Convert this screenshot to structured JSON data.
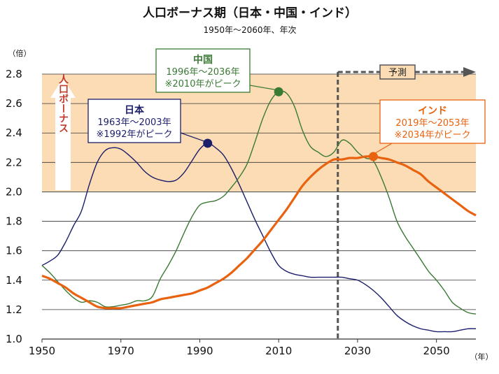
{
  "chart_data": {
    "type": "line",
    "title": "人口ボーナス期（日本・中国・インド）",
    "subtitle": "1950年～2060年、年次",
    "ylabel_unit": "（倍）",
    "xlabel_unit": "（年）",
    "xlim": [
      1950,
      2060
    ],
    "ylim": [
      1.0,
      2.8
    ],
    "x_ticks": [
      1950,
      1970,
      1990,
      2010,
      2030,
      2050
    ],
    "y_ticks": [
      "1.0",
      "1.2",
      "1.4",
      "1.6",
      "1.8",
      "2.0",
      "2.2",
      "2.4",
      "2.6",
      "2.8"
    ],
    "bonus_threshold": 2.0,
    "bonus_label": "人口ボーナス",
    "forecast_start": 2025,
    "forecast_label": "予測",
    "colors": {
      "japan": "#1b1e6b",
      "china": "#3a7a35",
      "india": "#e8620f",
      "bonus_band": "#fcdcb4",
      "bonus_text": "#c0392b",
      "forecast": "#555555"
    },
    "series": [
      {
        "name": "日本",
        "color": "#1b1e6b",
        "points": [
          [
            1950,
            1.5
          ],
          [
            1952,
            1.53
          ],
          [
            1954,
            1.57
          ],
          [
            1956,
            1.66
          ],
          [
            1958,
            1.77
          ],
          [
            1960,
            1.87
          ],
          [
            1962,
            2.05
          ],
          [
            1964,
            2.2
          ],
          [
            1966,
            2.28
          ],
          [
            1968,
            2.3
          ],
          [
            1970,
            2.29
          ],
          [
            1972,
            2.25
          ],
          [
            1974,
            2.2
          ],
          [
            1976,
            2.14
          ],
          [
            1978,
            2.1
          ],
          [
            1980,
            2.08
          ],
          [
            1982,
            2.07
          ],
          [
            1984,
            2.08
          ],
          [
            1986,
            2.13
          ],
          [
            1988,
            2.21
          ],
          [
            1990,
            2.29
          ],
          [
            1992,
            2.33
          ],
          [
            1994,
            2.3
          ],
          [
            1996,
            2.25
          ],
          [
            1998,
            2.16
          ],
          [
            2000,
            2.05
          ],
          [
            2002,
            1.93
          ],
          [
            2004,
            1.81
          ],
          [
            2006,
            1.7
          ],
          [
            2008,
            1.59
          ],
          [
            2010,
            1.5
          ],
          [
            2012,
            1.46
          ],
          [
            2014,
            1.44
          ],
          [
            2016,
            1.43
          ],
          [
            2018,
            1.42
          ],
          [
            2020,
            1.42
          ],
          [
            2022,
            1.42
          ],
          [
            2024,
            1.42
          ],
          [
            2026,
            1.42
          ],
          [
            2028,
            1.41
          ],
          [
            2030,
            1.4
          ],
          [
            2032,
            1.37
          ],
          [
            2034,
            1.33
          ],
          [
            2036,
            1.28
          ],
          [
            2038,
            1.22
          ],
          [
            2040,
            1.16
          ],
          [
            2042,
            1.12
          ],
          [
            2044,
            1.09
          ],
          [
            2046,
            1.07
          ],
          [
            2048,
            1.06
          ],
          [
            2050,
            1.05
          ],
          [
            2052,
            1.05
          ],
          [
            2054,
            1.05
          ],
          [
            2056,
            1.06
          ],
          [
            2058,
            1.07
          ],
          [
            2060,
            1.07
          ]
        ]
      },
      {
        "name": "中国",
        "color": "#3a7a35",
        "points": [
          [
            1950,
            1.5
          ],
          [
            1952,
            1.45
          ],
          [
            1954,
            1.39
          ],
          [
            1956,
            1.33
          ],
          [
            1958,
            1.28
          ],
          [
            1960,
            1.25
          ],
          [
            1962,
            1.26
          ],
          [
            1964,
            1.25
          ],
          [
            1966,
            1.22
          ],
          [
            1968,
            1.22
          ],
          [
            1970,
            1.23
          ],
          [
            1972,
            1.24
          ],
          [
            1974,
            1.26
          ],
          [
            1976,
            1.26
          ],
          [
            1978,
            1.29
          ],
          [
            1980,
            1.41
          ],
          [
            1982,
            1.5
          ],
          [
            1984,
            1.6
          ],
          [
            1986,
            1.72
          ],
          [
            1988,
            1.83
          ],
          [
            1990,
            1.91
          ],
          [
            1992,
            1.93
          ],
          [
            1994,
            1.94
          ],
          [
            1996,
            1.97
          ],
          [
            1998,
            2.03
          ],
          [
            2000,
            2.1
          ],
          [
            2002,
            2.19
          ],
          [
            2004,
            2.34
          ],
          [
            2006,
            2.5
          ],
          [
            2008,
            2.62
          ],
          [
            2010,
            2.68
          ],
          [
            2012,
            2.67
          ],
          [
            2014,
            2.58
          ],
          [
            2016,
            2.42
          ],
          [
            2018,
            2.31
          ],
          [
            2020,
            2.27
          ],
          [
            2022,
            2.24
          ],
          [
            2024,
            2.27
          ],
          [
            2026,
            2.35
          ],
          [
            2028,
            2.33
          ],
          [
            2030,
            2.27
          ],
          [
            2032,
            2.23
          ],
          [
            2034,
            2.21
          ],
          [
            2036,
            2.1
          ],
          [
            2038,
            1.96
          ],
          [
            2040,
            1.8
          ],
          [
            2042,
            1.7
          ],
          [
            2044,
            1.62
          ],
          [
            2046,
            1.54
          ],
          [
            2048,
            1.46
          ],
          [
            2050,
            1.4
          ],
          [
            2052,
            1.33
          ],
          [
            2054,
            1.25
          ],
          [
            2056,
            1.21
          ],
          [
            2058,
            1.18
          ],
          [
            2060,
            1.17
          ]
        ]
      },
      {
        "name": "インド",
        "color": "#e8620f",
        "points": [
          [
            1950,
            1.43
          ],
          [
            1952,
            1.41
          ],
          [
            1954,
            1.38
          ],
          [
            1956,
            1.35
          ],
          [
            1958,
            1.31
          ],
          [
            1960,
            1.28
          ],
          [
            1962,
            1.25
          ],
          [
            1964,
            1.22
          ],
          [
            1966,
            1.21
          ],
          [
            1968,
            1.21
          ],
          [
            1970,
            1.21
          ],
          [
            1972,
            1.22
          ],
          [
            1974,
            1.23
          ],
          [
            1976,
            1.24
          ],
          [
            1978,
            1.25
          ],
          [
            1980,
            1.27
          ],
          [
            1982,
            1.28
          ],
          [
            1984,
            1.29
          ],
          [
            1986,
            1.3
          ],
          [
            1988,
            1.31
          ],
          [
            1990,
            1.33
          ],
          [
            1992,
            1.35
          ],
          [
            1994,
            1.38
          ],
          [
            1996,
            1.41
          ],
          [
            1998,
            1.45
          ],
          [
            2000,
            1.5
          ],
          [
            2002,
            1.55
          ],
          [
            2004,
            1.61
          ],
          [
            2006,
            1.67
          ],
          [
            2008,
            1.74
          ],
          [
            2010,
            1.81
          ],
          [
            2012,
            1.88
          ],
          [
            2014,
            1.96
          ],
          [
            2016,
            2.04
          ],
          [
            2018,
            2.1
          ],
          [
            2020,
            2.15
          ],
          [
            2022,
            2.19
          ],
          [
            2024,
            2.22
          ],
          [
            2026,
            2.22
          ],
          [
            2028,
            2.23
          ],
          [
            2030,
            2.23
          ],
          [
            2032,
            2.24
          ],
          [
            2034,
            2.24
          ],
          [
            2036,
            2.23
          ],
          [
            2038,
            2.22
          ],
          [
            2040,
            2.2
          ],
          [
            2042,
            2.18
          ],
          [
            2044,
            2.15
          ],
          [
            2046,
            2.12
          ],
          [
            2048,
            2.07
          ],
          [
            2050,
            2.03
          ],
          [
            2052,
            1.99
          ],
          [
            2054,
            1.95
          ],
          [
            2056,
            1.91
          ],
          [
            2058,
            1.87
          ],
          [
            2060,
            1.84
          ]
        ]
      }
    ],
    "peaks": [
      {
        "name": "日本",
        "x": 1992,
        "y": 2.33,
        "color": "#1b1e6b"
      },
      {
        "name": "中国",
        "x": 2010,
        "y": 2.68,
        "color": "#3a7a35"
      },
      {
        "name": "インド",
        "x": 2034,
        "y": 2.24,
        "color": "#e8620f"
      }
    ],
    "annotations": [
      {
        "name": "日本",
        "period": "1963年～2003年",
        "peak": "※1992年がピーク",
        "color": "#1b1e6b"
      },
      {
        "name": "中国",
        "period": "1996年～2036年",
        "peak": "※2010年がピーク",
        "color": "#3a7a35"
      },
      {
        "name": "インド",
        "period": "2019年～2053年",
        "peak": "※2034年がピーク",
        "color": "#e8620f"
      }
    ]
  }
}
